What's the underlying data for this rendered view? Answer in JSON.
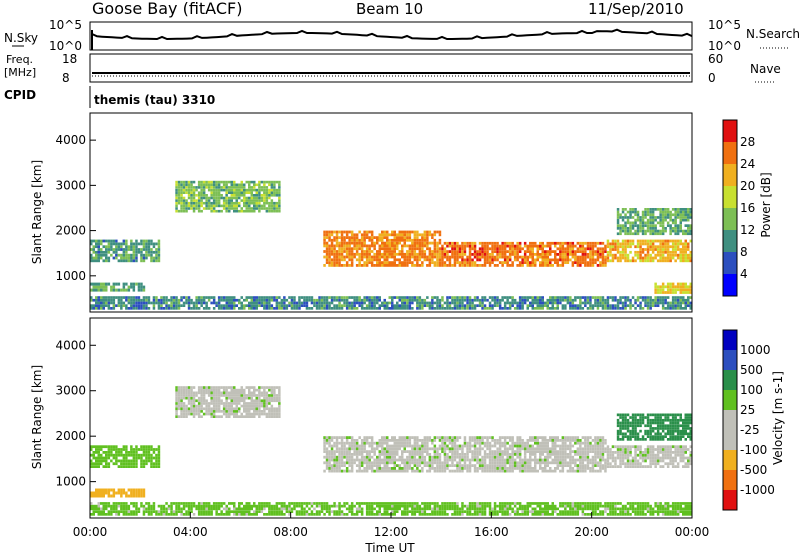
{
  "header": {
    "station": "Goose Bay (fitACF)",
    "beam": "Beam 10",
    "date": "11/Sep/2010"
  },
  "noise_panel": {
    "left_label": "N.Sky",
    "right_label": "N.Search",
    "left_ticks": [
      "10^5",
      "10^0"
    ],
    "right_ticks": [
      "10^5",
      "10^0"
    ]
  },
  "freq_panel": {
    "left_label_1": "Freq.",
    "left_label_2": "[MHz]",
    "right_label": "Nave",
    "left_ticks": [
      "18",
      "8"
    ],
    "right_ticks": [
      "60",
      "0"
    ]
  },
  "cpid": {
    "label": "CPID",
    "value": "themis (tau) 3310"
  },
  "colors": {
    "power_scale": [
      "#0000ff",
      "#2c4fbf",
      "#3f8f80",
      "#7dbf55",
      "#c8e030",
      "#f0b020",
      "#f07010",
      "#e01010"
    ],
    "velocity_scale": [
      "#e01010",
      "#f07010",
      "#f0b020",
      "#c0c0b8",
      "#c0c0b8",
      "#60c020",
      "#2a8f4a",
      "#2c4fbf",
      "#0000c0"
    ]
  },
  "chart_data": [
    {
      "type": "heatmap",
      "name": "power",
      "ylabel": "Slant Range [km]",
      "yticks": [
        "1000",
        "2000",
        "3000",
        "4000"
      ],
      "ylim": [
        200,
        4600
      ],
      "xlim": [
        0,
        24
      ],
      "colorbar_label": "Power [dB]",
      "colorbar_ticks": [
        "4",
        "8",
        "12",
        "16",
        "20",
        "24",
        "28"
      ],
      "colorbar_range": [
        0,
        32
      ],
      "regions": [
        {
          "t0": 0.0,
          "t1": 2.8,
          "r0": 1300,
          "r1": 1800,
          "v": 10
        },
        {
          "t0": 3.4,
          "t1": 7.6,
          "r0": 2400,
          "r1": 3100,
          "v": 13
        },
        {
          "t0": 9.3,
          "t1": 14.0,
          "r0": 1200,
          "r1": 2000,
          "v": 24
        },
        {
          "t0": 14.0,
          "t1": 20.6,
          "r0": 1200,
          "r1": 1750,
          "v": 25
        },
        {
          "t0": 20.6,
          "t1": 24.0,
          "r0": 1300,
          "r1": 1800,
          "v": 21
        },
        {
          "t0": 0.0,
          "t1": 24.0,
          "r0": 250,
          "r1": 550,
          "v": 9
        },
        {
          "t0": 21.0,
          "t1": 24.0,
          "r0": 1900,
          "r1": 2500,
          "v": 12
        },
        {
          "t0": 0.0,
          "t1": 2.2,
          "r0": 650,
          "r1": 850,
          "v": 11
        },
        {
          "t0": 22.5,
          "t1": 24.0,
          "r0": 600,
          "r1": 850,
          "v": 19
        }
      ]
    },
    {
      "type": "heatmap",
      "name": "velocity",
      "ylabel": "Slant Range [km]",
      "yticks": [
        "1000",
        "2000",
        "3000",
        "4000"
      ],
      "ylim": [
        200,
        4600
      ],
      "xlim": [
        0,
        24
      ],
      "xlabel": "Time UT",
      "xticks": [
        "00:00",
        "04:00",
        "08:00",
        "12:00",
        "16:00",
        "20:00",
        "00:00"
      ],
      "colorbar_label": "Velocity [m s-1]",
      "colorbar_ticks": [
        "1000",
        "500",
        "100",
        "25",
        "-25",
        "-100",
        "-500",
        "-1000"
      ],
      "regions": [
        {
          "t0": 0.0,
          "t1": 2.8,
          "r0": 1300,
          "r1": 1800,
          "v": 50
        },
        {
          "t0": 3.4,
          "t1": 7.6,
          "r0": 2400,
          "r1": 3100,
          "v": 0
        },
        {
          "t0": 9.3,
          "t1": 20.6,
          "r0": 1200,
          "r1": 2000,
          "v": 0
        },
        {
          "t0": 20.6,
          "t1": 24.0,
          "r0": 1300,
          "r1": 1800,
          "v": 0
        },
        {
          "t0": 21.0,
          "t1": 24.0,
          "r0": 1900,
          "r1": 2500,
          "v": 150
        },
        {
          "t0": 0.0,
          "t1": 2.2,
          "r0": 650,
          "r1": 850,
          "v": -200
        },
        {
          "t0": 0.0,
          "t1": 24.0,
          "r0": 250,
          "r1": 550,
          "v": 40
        }
      ]
    }
  ]
}
